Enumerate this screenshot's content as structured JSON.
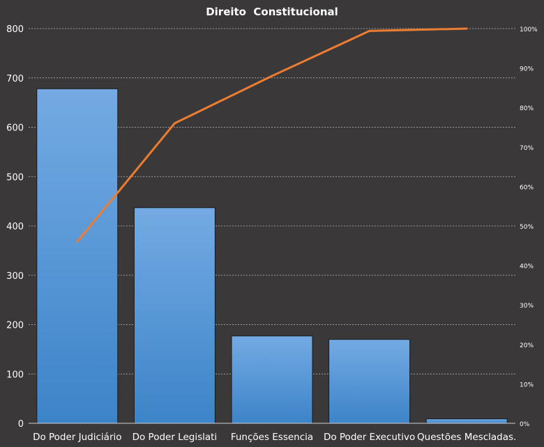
{
  "chart_data": {
    "type": "bar",
    "title": "Direito  Constitucional",
    "categories": [
      "Do Poder Judiciário",
      "Do Poder Legislati",
      "Funções Essencia",
      "Do Poder Executivo",
      "Questões Mescladas."
    ],
    "series": [
      {
        "type": "bar",
        "values": [
          678,
          437,
          177,
          170,
          9
        ],
        "color": "#5b9bd5"
      },
      {
        "type": "line",
        "axis": "right",
        "values": [
          46,
          76,
          88,
          99.4,
          100
        ],
        "unit": "%",
        "color": "#ed7d31"
      }
    ],
    "ylim": [
      0,
      800
    ],
    "yticks": [
      "0",
      "100",
      "200",
      "300",
      "400",
      "500",
      "600",
      "700",
      "800"
    ],
    "y2lim": [
      0,
      100
    ],
    "y2ticks": [
      "0%",
      "10%",
      "20%",
      "30%",
      "40%",
      "50%",
      "60%",
      "70%",
      "80%",
      "90%",
      "100%"
    ],
    "grid": true,
    "legend": "none"
  }
}
